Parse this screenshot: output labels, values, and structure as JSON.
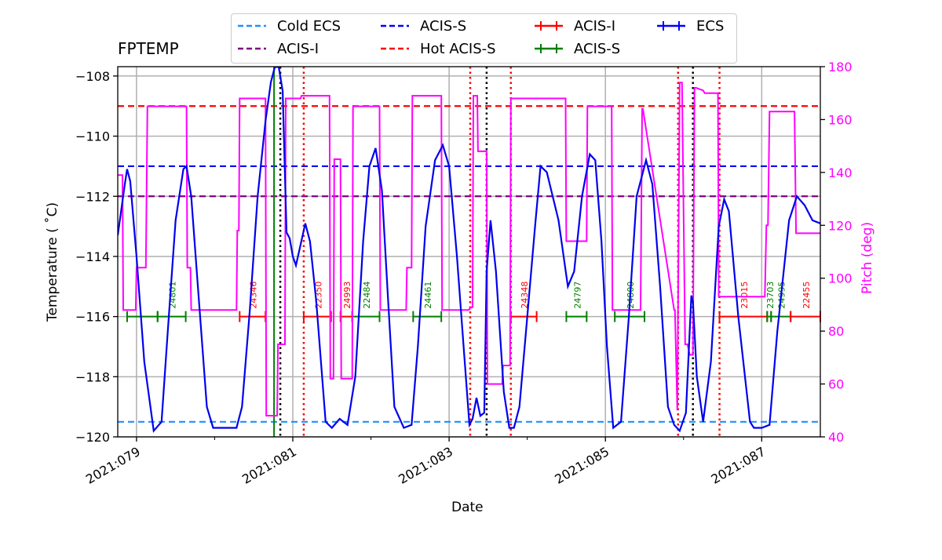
{
  "chart_data": {
    "type": "line",
    "title": "FPTEMP",
    "xlabel": "Date",
    "ylabel": "Temperature ($^\\circ$C)",
    "ylabel_display": "Temperature ( ˚C)",
    "y2label": "Pitch (deg)",
    "xlim_day": [
      78.76,
      87.75
    ],
    "ylim": [
      -120,
      -107.69
    ],
    "y2lim": [
      40,
      180
    ],
    "grid": true,
    "legend_position": "top center, outside plot",
    "x_ticks": [
      "2021:079",
      "2021:081",
      "2021:083",
      "2021:085",
      "2021:087"
    ],
    "x_tick_days": [
      79,
      81,
      83,
      85,
      87
    ],
    "y_ticks": [
      -120,
      -118,
      -116,
      -114,
      -112,
      -110,
      -108
    ],
    "y2_ticks": [
      40,
      60,
      80,
      100,
      120,
      140,
      160,
      180
    ],
    "colors": {
      "temperature": "#0000ee",
      "pitch": "#ff00ff",
      "cold_ecs": "#1e90ff",
      "acis_s_limit": "#0000ff",
      "acis_i_limit": "#800080",
      "hot_acis_s_limit": "#ff0000",
      "acis_i_obs": "#ff0000",
      "acis_s_obs": "#008000",
      "ecs_obs": "#0000ff"
    },
    "reference_lines": [
      {
        "name": "Cold ECS",
        "value": -119.5,
        "color": "#1e90ff",
        "style": "dashed"
      },
      {
        "name": "ACIS-S",
        "value": -111.0,
        "color": "#0000ff",
        "style": "dashed"
      },
      {
        "name": "ACIS-I",
        "value": -112.0,
        "color": "#800080",
        "style": "dashed"
      },
      {
        "name": "Hot ACIS-S",
        "value": -109.0,
        "color": "#ff0000",
        "style": "dashed"
      }
    ],
    "legend": [
      {
        "label": "Cold ECS",
        "style": "dashed",
        "color": "#1e90ff"
      },
      {
        "label": "ACIS-I",
        "style": "dashed",
        "color": "#800080"
      },
      {
        "label": "ACIS-S",
        "style": "dashed",
        "color": "#0000ff"
      },
      {
        "label": "Hot ACIS-S",
        "style": "dashed",
        "color": "#ff0000"
      },
      {
        "label": "ACIS-I",
        "style": "errorbar",
        "color": "#ff0000"
      },
      {
        "label": "ACIS-S",
        "style": "errorbar",
        "color": "#008000"
      },
      {
        "label": "ECS",
        "style": "errorbar",
        "color": "#0000ff"
      }
    ],
    "observations": [
      {
        "obsid": "",
        "instrument": "ACIS-S",
        "start": 78.88,
        "end": 79.27,
        "temp": -116
      },
      {
        "obsid": "24801",
        "instrument": "ACIS-S",
        "start": 79.27,
        "end": 79.63,
        "temp": -116
      },
      {
        "obsid": "24346",
        "instrument": "ACIS-I",
        "start": 80.32,
        "end": 80.65,
        "temp": -116
      },
      {
        "obsid": "22350",
        "instrument": "ACIS-I",
        "start": 81.14,
        "end": 81.49,
        "temp": -116
      },
      {
        "obsid": "24993",
        "instrument": "ACIS-I",
        "start": 81.61,
        "end": 81.76,
        "temp": -116
      },
      {
        "obsid": "22484",
        "instrument": "ACIS-S",
        "start": 81.76,
        "end": 82.11,
        "temp": -116
      },
      {
        "obsid": "24461",
        "instrument": "ACIS-S",
        "start": 82.54,
        "end": 82.9,
        "temp": -116
      },
      {
        "obsid": "24348",
        "instrument": "ACIS-I",
        "start": 83.79,
        "end": 84.12,
        "temp": -116
      },
      {
        "obsid": "24797",
        "instrument": "ACIS-S",
        "start": 84.5,
        "end": 84.76,
        "temp": -116
      },
      {
        "obsid": "24800",
        "instrument": "ACIS-S",
        "start": 85.12,
        "end": 85.5,
        "temp": -116
      },
      {
        "obsid": "23015",
        "instrument": "ACIS-I",
        "start": 86.46,
        "end": 87.07,
        "temp": -116
      },
      {
        "obsid": "23703",
        "instrument": "ACIS-S",
        "start": 87.07,
        "end": 87.12,
        "temp": -116
      },
      {
        "obsid": "24995",
        "instrument": "ACIS-S",
        "start": 87.12,
        "end": 87.37,
        "temp": -116
      },
      {
        "obsid": "22455",
        "instrument": "ACIS-I",
        "start": 87.37,
        "end": 87.75,
        "temp": -116
      }
    ],
    "vertical_markers": [
      {
        "day": 80.76,
        "color": "#008000",
        "style": "solid"
      },
      {
        "day": 80.84,
        "color": "#000000",
        "style": "dotted"
      },
      {
        "day": 81.14,
        "color": "#ff0000",
        "style": "dotted"
      },
      {
        "day": 83.27,
        "color": "#ff0000",
        "style": "dotted"
      },
      {
        "day": 83.48,
        "color": "#000000",
        "style": "dotted"
      },
      {
        "day": 83.79,
        "color": "#ff0000",
        "style": "dotted"
      },
      {
        "day": 85.93,
        "color": "#ff0000",
        "style": "dotted"
      },
      {
        "day": 86.12,
        "color": "#000000",
        "style": "dotted"
      },
      {
        "day": 86.46,
        "color": "#ff0000",
        "style": "dotted"
      }
    ],
    "series": [
      {
        "name": "FPTEMP",
        "axis": "left",
        "x": [
          78.76,
          78.85,
          78.88,
          78.92,
          79.0,
          79.1,
          79.22,
          79.32,
          79.4,
          79.5,
          79.6,
          79.64,
          79.7,
          79.8,
          79.9,
          79.98,
          80.1,
          80.28,
          80.35,
          80.45,
          80.55,
          80.65,
          80.72,
          80.77,
          80.82,
          80.87,
          80.92,
          80.96,
          81.0,
          81.04,
          81.1,
          81.16,
          81.22,
          81.3,
          81.42,
          81.5,
          81.6,
          81.7,
          81.8,
          81.9,
          81.98,
          82.06,
          82.14,
          82.22,
          82.3,
          82.42,
          82.52,
          82.6,
          82.7,
          82.82,
          82.92,
          83.0,
          83.1,
          83.2,
          83.26,
          83.3,
          83.35,
          83.4,
          83.45,
          83.48,
          83.53,
          83.6,
          83.7,
          83.77,
          83.83,
          83.9,
          84.0,
          84.1,
          84.17,
          84.25,
          84.4,
          84.52,
          84.6,
          84.7,
          84.8,
          84.87,
          84.95,
          85.02,
          85.1,
          85.2,
          85.3,
          85.4,
          85.52,
          85.6,
          85.7,
          85.8,
          85.88,
          85.95,
          86.03,
          86.1,
          86.12,
          86.17,
          86.25,
          86.35,
          86.45,
          86.52,
          86.58,
          86.7,
          86.85,
          86.9,
          87.0,
          87.1,
          87.2,
          87.35,
          87.45,
          87.55,
          87.65,
          87.75
        ],
        "values": [
          -113.3,
          -111.6,
          -111.1,
          -111.5,
          -114.0,
          -117.5,
          -119.8,
          -119.5,
          -116.5,
          -112.8,
          -111.1,
          -111.0,
          -112.0,
          -115.5,
          -119.0,
          -119.7,
          -119.7,
          -119.7,
          -119.0,
          -115.8,
          -112.0,
          -109.5,
          -108.2,
          -107.7,
          -107.7,
          -108.5,
          -113.2,
          -113.4,
          -114.0,
          -114.3,
          -113.6,
          -112.9,
          -113.5,
          -115.5,
          -119.5,
          -119.7,
          -119.4,
          -119.6,
          -118.0,
          -113.5,
          -111.0,
          -110.4,
          -111.8,
          -115.5,
          -119.0,
          -119.7,
          -119.6,
          -117.0,
          -113.0,
          -110.8,
          -110.3,
          -111.0,
          -114.0,
          -117.5,
          -119.6,
          -119.4,
          -118.7,
          -119.3,
          -119.2,
          -114.5,
          -112.8,
          -114.5,
          -118.5,
          -119.7,
          -119.7,
          -119.0,
          -116.0,
          -113.0,
          -111.0,
          -111.2,
          -112.8,
          -115.0,
          -114.5,
          -112.0,
          -110.6,
          -110.8,
          -113.5,
          -117.0,
          -119.7,
          -119.5,
          -116.0,
          -112.0,
          -110.8,
          -111.6,
          -115.0,
          -119.0,
          -119.6,
          -119.8,
          -119.2,
          -115.3,
          -115.5,
          -118.0,
          -119.5,
          -117.5,
          -113.0,
          -112.1,
          -112.5,
          -116.0,
          -119.5,
          -119.7,
          -119.7,
          -119.6,
          -116.5,
          -112.8,
          -112.0,
          -112.3,
          -112.8,
          -112.9
        ]
      },
      {
        "name": "Pitch",
        "axis": "right",
        "x": [
          78.76,
          78.82,
          78.83,
          78.99,
          79.0,
          79.12,
          79.14,
          79.27,
          79.28,
          79.64,
          79.65,
          79.69,
          79.7,
          80.28,
          80.29,
          80.31,
          80.32,
          80.65,
          80.66,
          80.8,
          80.81,
          80.9,
          80.91,
          81.08,
          81.1,
          81.11,
          81.12,
          81.47,
          81.48,
          81.52,
          81.53,
          81.61,
          81.62,
          81.76,
          81.77,
          82.11,
          82.12,
          82.45,
          82.46,
          82.52,
          82.53,
          82.9,
          82.91,
          83.25,
          83.28,
          83.3,
          83.31,
          83.34,
          83.36,
          83.37,
          83.48,
          83.49,
          83.5,
          83.68,
          83.69,
          83.78,
          83.79,
          84.12,
          84.13,
          84.49,
          84.5,
          84.76,
          84.77,
          85.08,
          85.09,
          85.45,
          85.47,
          85.48,
          85.88,
          85.89,
          85.92,
          85.95,
          85.98,
          86.02,
          86.05,
          86.08,
          86.12,
          86.14,
          86.16,
          86.25,
          86.27,
          86.44,
          86.45,
          86.46,
          87.04,
          87.06,
          87.08,
          87.1,
          87.42,
          87.44,
          87.75
        ],
        "values": [
          139,
          139,
          88,
          88,
          104,
          104,
          165,
          165,
          165,
          165,
          104,
          104,
          88,
          88,
          118,
          118,
          168,
          168,
          48,
          48,
          75,
          75,
          168,
          168,
          168,
          169,
          169,
          169,
          62,
          62,
          145,
          145,
          62,
          62,
          165,
          165,
          88,
          88,
          104,
          104,
          169,
          169,
          88,
          88,
          89,
          89,
          169,
          169,
          169,
          148,
          148,
          60,
          60,
          60,
          67,
          67,
          168,
          168,
          168,
          168,
          114,
          114,
          165,
          165,
          88,
          88,
          164,
          164,
          88,
          88,
          50,
          174,
          174,
          75,
          75,
          71,
          71,
          172,
          172,
          171,
          170,
          170,
          93,
          93,
          93,
          120,
          120,
          163,
          163,
          117,
          117
        ]
      }
    ]
  }
}
